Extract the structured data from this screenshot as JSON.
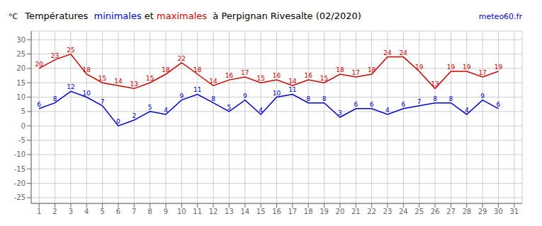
{
  "chart_data": {
    "type": "line",
    "title": "Températures  minimales et maximales  à Perpignan Rivesalte (02/2020)",
    "ylabel": "°C",
    "annotations": [
      "meteo60.fr"
    ],
    "x": [
      1,
      2,
      3,
      4,
      5,
      6,
      7,
      8,
      9,
      10,
      11,
      12,
      13,
      14,
      15,
      16,
      17,
      18,
      19,
      20,
      21,
      22,
      23,
      24,
      25,
      26,
      27,
      28,
      29,
      30,
      31
    ],
    "series": [
      {
        "name": "minimales",
        "color": "#0000cc",
        "values": [
          6,
          8,
          12,
          10,
          7,
          0,
          2,
          5,
          4,
          9,
          11,
          8,
          5,
          9,
          4,
          10,
          11,
          8,
          8,
          3,
          6,
          6,
          4,
          6,
          7,
          8,
          8,
          4,
          9,
          6,
          null
        ]
      },
      {
        "name": "maximales",
        "color": "#cc0000",
        "values": [
          20,
          23,
          25,
          18,
          15,
          14,
          13,
          15,
          18,
          22,
          18,
          14,
          16,
          17,
          15,
          16,
          14,
          16,
          15,
          18,
          17,
          18,
          24,
          24,
          19,
          13,
          19,
          19,
          17,
          19,
          null
        ]
      }
    ],
    "xlim": [
      0.5,
      31.5
    ],
    "xticks": [
      1,
      2,
      3,
      4,
      5,
      6,
      7,
      8,
      9,
      10,
      11,
      12,
      13,
      14,
      15,
      16,
      17,
      18,
      19,
      20,
      21,
      22,
      23,
      24,
      25,
      26,
      27,
      28,
      29,
      30,
      31
    ],
    "ylim": [
      -27,
      33
    ],
    "yticks": [
      -25,
      -20,
      -15,
      -10,
      -5,
      0,
      5,
      10,
      15,
      20,
      25,
      30
    ],
    "grid": true,
    "data_labels": true
  }
}
